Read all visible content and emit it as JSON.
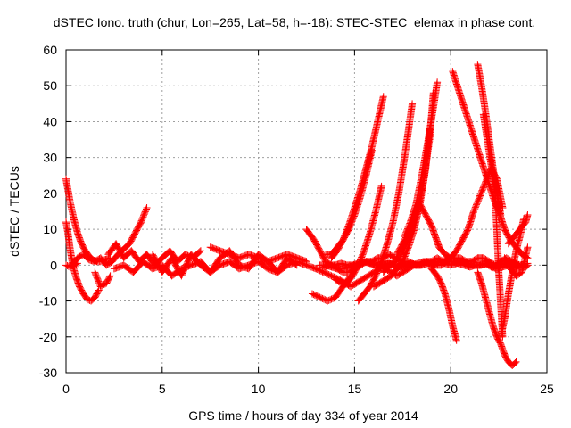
{
  "chart_data": {
    "type": "scatter",
    "title": "dSTEC Iono. truth (chur, Lon=265, Lat=58, h=-18): STEC-STEC_elemax in phase cont.",
    "xlabel": "GPS time / hours of day 334 of year 2014",
    "ylabel": "dSTEC  / TECUs",
    "xlim": [
      0,
      25
    ],
    "ylim": [
      -30,
      60
    ],
    "xticks": [
      0,
      5,
      10,
      15,
      20,
      25
    ],
    "yticks": [
      -30,
      -20,
      -10,
      0,
      10,
      20,
      30,
      40,
      50,
      60
    ],
    "grid": true,
    "marker": "+",
    "color": "#ff0000",
    "series": [
      {
        "x": [
          0.0,
          0.2,
          0.4,
          0.6,
          0.8,
          1.0,
          1.2,
          1.4,
          1.6,
          1.8,
          2.0,
          2.3
        ],
        "y": [
          24,
          18,
          13,
          9,
          6,
          4,
          2.5,
          1.5,
          1,
          1,
          1.5,
          2
        ]
      },
      {
        "x": [
          0.0,
          0.1,
          0.2,
          0.35,
          0.5,
          0.7,
          0.9,
          1.1,
          1.3,
          1.5,
          1.7
        ],
        "y": [
          12,
          9,
          5,
          0,
          -3,
          -6,
          -8,
          -9.5,
          -10,
          -9,
          -7
        ]
      },
      {
        "x": [
          0.0,
          0.2,
          0.4,
          0.6
        ],
        "y": [
          0,
          -0.5,
          0,
          0.5
        ]
      },
      {
        "x": [
          1.5,
          1.8,
          2.1,
          2.3
        ],
        "y": [
          -2,
          -6,
          -5,
          -3
        ]
      },
      {
        "x": [
          0.3,
          0.6,
          0.9,
          1.2,
          1.5,
          1.8,
          2.1,
          2.4,
          2.7,
          3.0,
          3.3,
          3.6,
          3.9,
          4.2
        ],
        "y": [
          0,
          2,
          3,
          1.5,
          1,
          2,
          0,
          1,
          3,
          4.5,
          6,
          9,
          12,
          16
        ]
      },
      {
        "x": [
          2.2,
          2.6,
          3.0,
          3.4,
          3.8,
          4.2,
          4.6,
          5.0,
          5.4,
          5.8,
          6.2,
          6.6,
          7.0
        ],
        "y": [
          3,
          6,
          2,
          4,
          1,
          3,
          0,
          2,
          4,
          1,
          3,
          2,
          4
        ]
      },
      {
        "x": [
          2.5,
          3.0,
          3.5,
          4.0,
          4.5,
          5.0,
          5.5,
          6.0,
          6.5,
          7.0,
          7.5,
          8.0,
          8.5,
          9.0,
          9.5,
          10.0,
          10.5,
          11.0,
          11.5,
          12.0,
          12.5,
          13.0
        ],
        "y": [
          -1,
          0,
          -2,
          1,
          -1,
          0,
          -3,
          -1,
          0,
          1,
          -2,
          0,
          1,
          -1,
          0,
          1,
          -1,
          -2,
          0,
          1,
          0,
          -1
        ]
      },
      {
        "x": [
          4.5,
          5.0,
          5.5,
          6.0,
          6.5,
          7.0,
          7.5,
          8.0,
          8.5,
          9.0,
          9.5,
          10.0,
          10.5,
          11.0,
          11.5,
          12.0
        ],
        "y": [
          3,
          -2,
          2,
          -3,
          3,
          0,
          -2,
          2,
          4,
          0,
          -1,
          3,
          1,
          -2,
          2,
          0
        ]
      },
      {
        "x": [
          7.5,
          8.0,
          8.5,
          9.0,
          9.5,
          10.0,
          10.5,
          11.0,
          11.5,
          12.0,
          12.5
        ],
        "y": [
          5,
          4,
          3,
          2,
          3,
          2,
          1,
          2,
          3,
          2,
          1
        ]
      },
      {
        "x": [
          12.5,
          12.9,
          13.2,
          13.5,
          13.8,
          14.1,
          14.4,
          14.7,
          15.0,
          15.3,
          15.6,
          15.9,
          16.2,
          16.5,
          16.8,
          17.1,
          17.4,
          17.8,
          18.2
        ],
        "y": [
          10,
          7,
          4,
          1,
          0,
          -1,
          -2,
          -2,
          -1,
          0,
          1,
          1,
          2,
          2,
          3,
          2,
          1,
          1,
          0
        ]
      },
      {
        "x": [
          12.8,
          13.2,
          13.6,
          14.0,
          14.4,
          14.8
        ],
        "y": [
          -8,
          -9,
          -10,
          -9,
          -6,
          -3
        ]
      },
      {
        "x": [
          13.0,
          13.4,
          13.8,
          14.2,
          14.5,
          14.8,
          15.1,
          15.4,
          15.7,
          16.0,
          16.3,
          16.6,
          16.9,
          17.2,
          17.5,
          17.8,
          18.1,
          18.4,
          18.7,
          19.0,
          19.3,
          19.6,
          19.9,
          20.2,
          20.5,
          20.8,
          21.1,
          21.4,
          21.7,
          22.0,
          22.3,
          22.6,
          22.9,
          23.2,
          23.5
        ],
        "y": [
          -1,
          -2,
          -3,
          -4,
          -5,
          -6,
          -5,
          -4,
          -3,
          -2,
          -1,
          -1,
          -2,
          -3,
          -2,
          -1,
          0,
          0,
          1,
          1,
          2,
          1,
          2,
          2,
          2,
          1,
          1,
          2,
          2,
          1,
          0,
          1,
          2,
          1,
          0
        ]
      },
      {
        "x": [
          13.2,
          13.5,
          13.8,
          14.1,
          14.4,
          14.7,
          15.0,
          15.3,
          15.6,
          15.9,
          16.2,
          16.5,
          16.8,
          17.1,
          17.4,
          17.7,
          18.0,
          18.3,
          18.6,
          18.9,
          19.2,
          19.5,
          19.8,
          20.1,
          20.4,
          20.7,
          21.0,
          21.3,
          21.6,
          21.9,
          22.2,
          22.5,
          22.8,
          23.1,
          23.4,
          23.7,
          24.0
        ],
        "y": [
          0,
          0,
          -0.5,
          -1,
          -1,
          -0.5,
          0,
          0,
          1,
          0.5,
          0,
          0,
          0.5,
          0,
          -0.5,
          0,
          0,
          0.5,
          1,
          0.5,
          0,
          0,
          1,
          1,
          0.5,
          0,
          -0.5,
          0,
          0,
          0.5,
          -0.5,
          0,
          0.5,
          0,
          -1,
          0,
          0.5
        ]
      },
      {
        "x": [
          13.4,
          13.7,
          14.0,
          14.3,
          14.6,
          14.9,
          15.2,
          15.5,
          15.8,
          16.1,
          16.4,
          16.7,
          17.0,
          17.3,
          17.6,
          17.9,
          18.2,
          18.5,
          18.8,
          19.1,
          19.4,
          19.7,
          20.0,
          20.3,
          20.6,
          20.9,
          21.2,
          21.5,
          21.8,
          22.1,
          22.4,
          22.7,
          23.0,
          23.3,
          23.6,
          23.9,
          24.0
        ],
        "y": [
          -0.5,
          0,
          0,
          0.5,
          0,
          0,
          0.5,
          1,
          0.5,
          0,
          0,
          0.5,
          0,
          -0.5,
          0,
          0.5,
          0,
          0,
          0.5,
          0,
          1,
          0.5,
          0,
          0.5,
          1,
          0.5,
          0,
          0,
          0.5,
          -0.5,
          -1,
          -0.5,
          0,
          0.5,
          0,
          -0.5,
          0
        ]
      },
      {
        "x": [
          13.8,
          14.1,
          14.4,
          14.7,
          15.0,
          15.3,
          15.6,
          15.9,
          16.2,
          16.5
        ],
        "y": [
          2,
          4,
          7,
          11,
          16,
          21,
          27,
          33,
          40,
          47
        ]
      },
      {
        "x": [
          13.5,
          13.8,
          14.1,
          14.4,
          14.7,
          15.0,
          15.3,
          15.6,
          15.9
        ],
        "y": [
          3,
          3,
          5,
          7,
          10,
          14,
          19,
          25,
          32
        ]
      },
      {
        "x": [
          14.0,
          14.3,
          14.6,
          14.9,
          15.2,
          15.5,
          15.8,
          16.1,
          16.4
        ],
        "y": [
          -4,
          -5,
          -5,
          -3,
          0,
          4,
          9,
          15,
          22
        ]
      },
      {
        "x": [
          15.2,
          15.5,
          15.8,
          16.1,
          16.4,
          16.7,
          17.0,
          17.3,
          17.6,
          18.0
        ],
        "y": [
          -10,
          -8,
          -6,
          -3,
          1,
          6,
          12,
          20,
          30,
          45
        ]
      },
      {
        "x": [
          16.0,
          16.3,
          16.6,
          16.9,
          17.2,
          17.5,
          17.8,
          18.1,
          18.4,
          18.7,
          18.9
        ],
        "y": [
          -6,
          -5,
          -4,
          -3,
          -1,
          1,
          5,
          10,
          17,
          27,
          38
        ]
      },
      {
        "x": [
          16.5,
          16.8,
          17.1,
          17.4,
          17.7,
          18.0,
          18.3,
          18.6,
          18.9,
          19.1
        ],
        "y": [
          -2,
          0,
          1,
          3,
          6,
          10,
          16,
          24,
          35,
          48
        ]
      },
      {
        "x": [
          17.2,
          17.5,
          17.8,
          18.1,
          18.4,
          18.7,
          19.0,
          19.2,
          19.4,
          19.7,
          20.0
        ],
        "y": [
          3,
          6,
          9,
          13,
          17,
          14,
          11,
          8,
          5,
          3,
          2
        ]
      },
      {
        "x": [
          17.6,
          17.9,
          18.2,
          18.5,
          18.8,
          19.1,
          19.3
        ],
        "y": [
          8,
          12,
          17,
          25,
          34,
          44,
          51
        ]
      },
      {
        "x": [
          19.0,
          19.3,
          19.5,
          19.7,
          19.9,
          20.1,
          20.3
        ],
        "y": [
          -1,
          -3,
          -5,
          -8,
          -12,
          -17,
          -21
        ]
      },
      {
        "x": [
          20.1,
          20.4,
          20.7,
          21.0,
          21.3,
          21.6,
          21.9,
          22.2,
          22.5,
          22.8,
          23.1,
          23.4,
          23.7,
          24.0
        ],
        "y": [
          54,
          49,
          44,
          39,
          34,
          29,
          24,
          19,
          15,
          10,
          7,
          5,
          3,
          2
        ]
      },
      {
        "x": [
          20.0,
          20.3,
          20.6,
          20.9,
          21.2,
          21.5,
          21.8,
          22.1,
          22.4,
          22.7
        ],
        "y": [
          2,
          4,
          7,
          10,
          15,
          19,
          23,
          27,
          24,
          16
        ]
      },
      {
        "x": [
          21.4,
          21.6,
          21.8,
          22.0,
          22.2,
          22.4,
          22.6
        ],
        "y": [
          56,
          50,
          43,
          35,
          27,
          20,
          14
        ]
      },
      {
        "x": [
          21.4,
          21.6,
          21.8,
          22.0,
          22.2,
          22.4,
          22.6,
          22.8,
          23.0,
          23.2,
          23.4
        ],
        "y": [
          -2,
          -5,
          -9,
          -13,
          -17,
          -20,
          -22,
          -25,
          -27,
          -28,
          -27
        ]
      },
      {
        "x": [
          21.7,
          21.9,
          22.1,
          22.3,
          22.5,
          22.7
        ],
        "y": [
          42,
          35,
          28,
          21,
          -2,
          -20
        ]
      },
      {
        "x": [
          22.6,
          22.8,
          23.0,
          23.2,
          23.4,
          23.6,
          23.8
        ],
        "y": [
          -20,
          -15,
          -8,
          -2,
          4,
          8,
          13
        ]
      },
      {
        "x": [
          23.0,
          23.3,
          23.6,
          23.9,
          24.0
        ],
        "y": [
          6,
          8,
          10,
          12,
          14
        ]
      },
      {
        "x": [
          22.8,
          23.1,
          23.4,
          23.7,
          24.0
        ],
        "y": [
          2,
          -1,
          -3,
          -2,
          5
        ]
      }
    ]
  }
}
